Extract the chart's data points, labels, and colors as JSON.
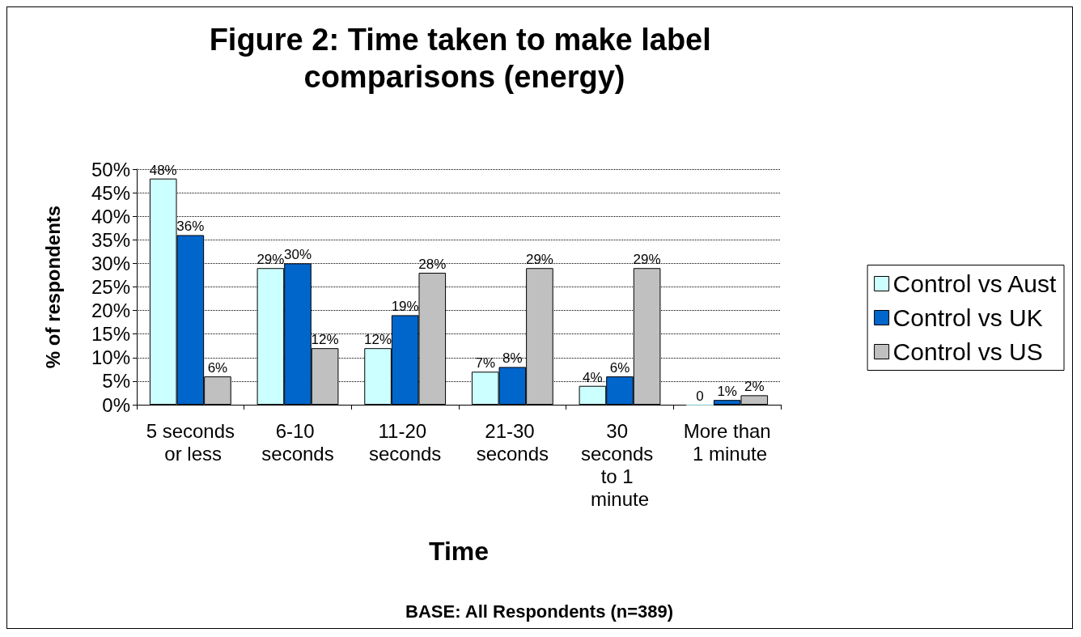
{
  "chart_data": {
    "type": "bar",
    "title": "Figure 2: Time taken to make label comparisons (energy)",
    "xlabel": "Time",
    "ylabel": "% of respondents",
    "categories": [
      "5 seconds or less",
      "6-10 seconds",
      "11-20 seconds",
      "21-30 seconds",
      "30 seconds to 1 minute",
      "More than 1 minute"
    ],
    "series": [
      {
        "name": "Control vs Aust",
        "color": "#ccffff",
        "values": [
          48,
          29,
          12,
          7,
          4,
          0
        ],
        "value_labels": [
          "48%",
          "29%",
          "12%",
          "7%",
          "4%",
          "0"
        ]
      },
      {
        "name": "Control vs UK",
        "color": "#0066cc",
        "values": [
          36,
          30,
          19,
          8,
          6,
          1
        ],
        "value_labels": [
          "36%",
          "30%",
          "19%",
          "8%",
          "6%",
          "1%"
        ]
      },
      {
        "name": "Control vs US",
        "color": "#c0c0c0",
        "values": [
          6,
          12,
          28,
          29,
          29,
          2
        ],
        "value_labels": [
          "6%",
          "12%",
          "28%",
          "29%",
          "29%",
          "2%"
        ]
      }
    ],
    "ylim": [
      0,
      50
    ],
    "yticks": [
      {
        "value": 0,
        "label": "0%"
      },
      {
        "value": 5,
        "label": "5%"
      },
      {
        "value": 10,
        "label": "10%"
      },
      {
        "value": 15,
        "label": "15%"
      },
      {
        "value": 20,
        "label": "20%"
      },
      {
        "value": 25,
        "label": "25%"
      },
      {
        "value": 30,
        "label": "30%"
      },
      {
        "value": 35,
        "label": "35%"
      },
      {
        "value": 40,
        "label": "40%"
      },
      {
        "value": 45,
        "label": "45%"
      },
      {
        "value": 50,
        "label": "50%"
      }
    ],
    "grid": "y",
    "legend": "right",
    "annotations": [
      "BASE: All Respondents (n=389)"
    ]
  }
}
